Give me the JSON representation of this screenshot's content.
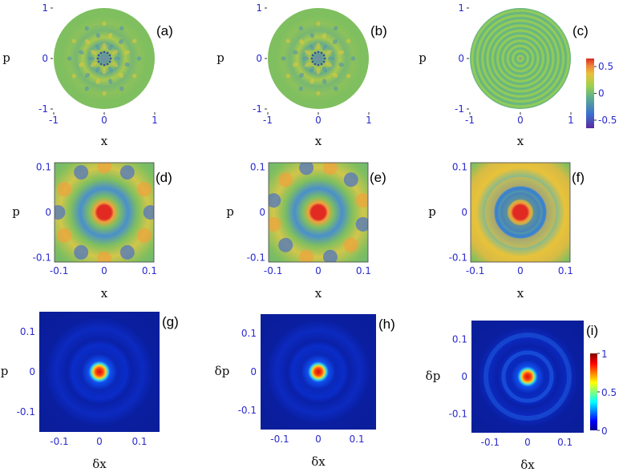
{
  "figure": {
    "rows": [
      {
        "kind": "phase-space-disk",
        "xlabel": "x",
        "ylabel": "p",
        "ticks": [
          "-1",
          "0",
          "1"
        ],
        "tick_values": [
          -1,
          0,
          1
        ],
        "range": [
          -1.1,
          1.1
        ],
        "panels": [
          "(a)",
          "(b)",
          "(c)"
        ]
      },
      {
        "kind": "zoom-square",
        "xlabel": "x",
        "ylabel": "p",
        "ticks": [
          "-0.1",
          "0",
          "0.1"
        ],
        "tick_values": [
          -0.1,
          0,
          0.1
        ],
        "range": [
          -0.11,
          0.11
        ],
        "panels": [
          "(d)",
          "(e)",
          "(f)"
        ]
      },
      {
        "kind": "displacement-map",
        "xlabel": "δx",
        "ylabel": "δp",
        "ticks": [
          "-0.1",
          "0",
          "0.1"
        ],
        "tick_values": [
          -0.1,
          0,
          0.1
        ],
        "range": [
          -0.15,
          0.15
        ],
        "panels": [
          "(g)",
          "(h)",
          "(i)"
        ]
      }
    ],
    "colorbars": [
      {
        "name": "wigner-colorbar",
        "ticks": [
          "0.5",
          "0",
          "-0.5"
        ],
        "tick_values": [
          0.5,
          0,
          -0.5
        ],
        "range": [
          -0.65,
          0.65
        ]
      },
      {
        "name": "fidelity-colorbar",
        "ticks": [
          "1",
          "0.5",
          "0"
        ],
        "tick_values": [
          1,
          0.5,
          0
        ],
        "range": [
          0,
          1
        ]
      }
    ],
    "colors": {
      "tick_text": "#2a2ad0",
      "axis_text": "#111111",
      "disk_background": "#7fbf5f"
    }
  },
  "chart_data": [
    {
      "type": "heatmap",
      "panel": "(a)",
      "description_values": "Wigner function, 12-fold symmetric interference pattern",
      "x_range": [
        -1,
        1
      ],
      "y_range": [
        -1,
        1
      ],
      "color_range": [
        -0.65,
        0.65
      ]
    },
    {
      "type": "heatmap",
      "panel": "(b)",
      "x_range": [
        -1,
        1
      ],
      "y_range": [
        -1,
        1
      ],
      "color_range": [
        -0.65,
        0.65
      ]
    },
    {
      "type": "heatmap",
      "panel": "(c)",
      "x_range": [
        -1,
        1
      ],
      "y_range": [
        -1,
        1
      ],
      "color_range": [
        -0.65,
        0.65
      ]
    },
    {
      "type": "heatmap",
      "panel": "(d)",
      "x_range": [
        -0.1,
        0.1
      ],
      "y_range": [
        -0.1,
        0.1
      ],
      "color_range": [
        -0.65,
        0.65
      ]
    },
    {
      "type": "heatmap",
      "panel": "(e)",
      "x_range": [
        -0.1,
        0.1
      ],
      "y_range": [
        -0.1,
        0.1
      ],
      "color_range": [
        -0.65,
        0.65
      ]
    },
    {
      "type": "heatmap",
      "panel": "(f)",
      "x_range": [
        -0.1,
        0.1
      ],
      "y_range": [
        -0.1,
        0.1
      ],
      "color_range": [
        -0.65,
        0.65
      ]
    },
    {
      "type": "heatmap",
      "panel": "(g)",
      "x_range": [
        -0.15,
        0.15
      ],
      "y_range": [
        -0.15,
        0.15
      ],
      "color_range": [
        0,
        1
      ]
    },
    {
      "type": "heatmap",
      "panel": "(h)",
      "x_range": [
        -0.15,
        0.15
      ],
      "y_range": [
        -0.15,
        0.15
      ],
      "color_range": [
        0,
        1
      ]
    },
    {
      "type": "heatmap",
      "panel": "(i)",
      "x_range": [
        -0.15,
        0.15
      ],
      "y_range": [
        -0.15,
        0.15
      ],
      "color_range": [
        0,
        1
      ]
    }
  ]
}
